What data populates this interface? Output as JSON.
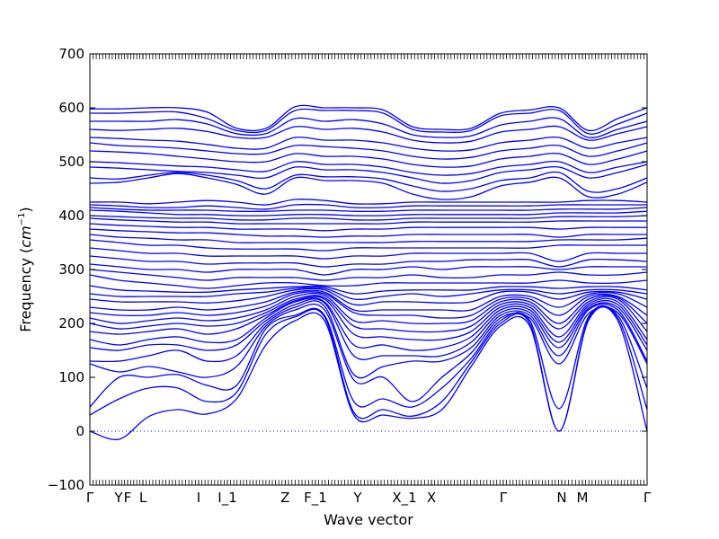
{
  "chart_data": {
    "type": "line",
    "title": "",
    "xlabel": "Wave vector",
    "ylabel": "Frequency (cm⁻¹)",
    "ylabel_text": "Frequency",
    "ylabel_unit_base": "cm",
    "ylabel_unit_exp": "−1",
    "ylim": [
      -100,
      700
    ],
    "xlim": [
      0,
      1
    ],
    "yticks": [
      -100,
      0,
      100,
      200,
      300,
      400,
      500,
      600,
      700
    ],
    "grid": false,
    "series_color": "#0000ff",
    "zero_line_color": "#0000ff",
    "high_symmetry_points": [
      {
        "label": "Γ",
        "x": 0.0
      },
      {
        "label": "Y",
        "x": 0.0516
      },
      {
        "label": "F",
        "x": 0.0677
      },
      {
        "label": "L",
        "x": 0.0952
      },
      {
        "label": "I",
        "x": 0.1952
      },
      {
        "label": "I_1",
        "x": 0.2468
      },
      {
        "label": "Z",
        "x": 0.3505
      },
      {
        "label": "F_1",
        "x": 0.4048
      },
      {
        "label": "Y",
        "x": 0.4806
      },
      {
        "label": "X_1",
        "x": 0.5645
      },
      {
        "label": "X",
        "x": 0.6129
      },
      {
        "label": "Γ",
        "x": 0.7419
      },
      {
        "label": "N",
        "x": 0.8468
      },
      {
        "label": "M",
        "x": 0.8839
      },
      {
        "label": "Γ",
        "x": 1.0
      }
    ],
    "bands": [
      [
        0,
        -15,
        27,
        40,
        32,
        60,
        160,
        205,
        205,
        30,
        30,
        24,
        40,
        120,
        195,
        195,
        0,
        205,
        205,
        0
      ],
      [
        30,
        60,
        80,
        80,
        55,
        72,
        180,
        212,
        212,
        35,
        40,
        28,
        55,
        128,
        200,
        200,
        0,
        208,
        210,
        40
      ],
      [
        45,
        100,
        100,
        105,
        85,
        85,
        190,
        215,
        215,
        55,
        60,
        45,
        80,
        135,
        205,
        205,
        42,
        212,
        215,
        80
      ],
      [
        125,
        110,
        120,
        110,
        100,
        120,
        195,
        225,
        225,
        95,
        100,
        55,
        100,
        145,
        210,
        210,
        125,
        218,
        220,
        125
      ],
      [
        130,
        130,
        140,
        150,
        130,
        140,
        200,
        230,
        232,
        105,
        120,
        130,
        130,
        155,
        215,
        215,
        140,
        225,
        225,
        130
      ],
      [
        155,
        150,
        160,
        160,
        150,
        160,
        205,
        235,
        238,
        140,
        140,
        140,
        140,
        165,
        220,
        220,
        155,
        228,
        230,
        150
      ],
      [
        170,
        160,
        170,
        175,
        165,
        170,
        210,
        240,
        240,
        160,
        160,
        150,
        155,
        175,
        225,
        225,
        165,
        232,
        235,
        160
      ],
      [
        185,
        180,
        185,
        190,
        180,
        190,
        215,
        242,
        245,
        180,
        175,
        170,
        170,
        185,
        230,
        230,
        175,
        236,
        240,
        170
      ],
      [
        200,
        190,
        195,
        200,
        195,
        200,
        220,
        245,
        248,
        195,
        190,
        185,
        185,
        195,
        235,
        235,
        190,
        240,
        245,
        185
      ],
      [
        210,
        200,
        205,
        210,
        205,
        210,
        225,
        250,
        252,
        205,
        205,
        200,
        200,
        205,
        240,
        240,
        200,
        245,
        248,
        200
      ],
      [
        220,
        215,
        215,
        220,
        215,
        220,
        232,
        255,
        255,
        220,
        215,
        215,
        210,
        215,
        245,
        245,
        215,
        250,
        250,
        215
      ],
      [
        230,
        225,
        225,
        230,
        225,
        230,
        240,
        258,
        258,
        225,
        225,
        225,
        225,
        225,
        250,
        250,
        230,
        254,
        255,
        230
      ],
      [
        245,
        240,
        240,
        240,
        238,
        242,
        250,
        262,
        262,
        235,
        240,
        240,
        238,
        240,
        258,
        258,
        245,
        258,
        258,
        245
      ],
      [
        255,
        250,
        250,
        250,
        250,
        255,
        258,
        265,
        265,
        245,
        250,
        255,
        250,
        255,
        262,
        262,
        255,
        262,
        262,
        255
      ],
      [
        270,
        262,
        260,
        258,
        258,
        262,
        265,
        268,
        268,
        255,
        260,
        262,
        262,
        262,
        268,
        268,
        265,
        268,
        268,
        262
      ],
      [
        290,
        280,
        275,
        270,
        265,
        270,
        275,
        275,
        270,
        270,
        275,
        275,
        275,
        275,
        275,
        275,
        280,
        275,
        275,
        280
      ],
      [
        300,
        295,
        290,
        285,
        280,
        285,
        285,
        285,
        280,
        285,
        285,
        290,
        285,
        285,
        290,
        290,
        295,
        290,
        290,
        295
      ],
      [
        310,
        305,
        300,
        300,
        295,
        300,
        300,
        300,
        290,
        300,
        300,
        305,
        300,
        305,
        305,
        305,
        300,
        305,
        305,
        305
      ],
      [
        325,
        320,
        315,
        315,
        310,
        312,
        312,
        312,
        305,
        310,
        310,
        315,
        315,
        318,
        318,
        318,
        305,
        318,
        318,
        315
      ],
      [
        340,
        335,
        330,
        330,
        325,
        325,
        325,
        325,
        320,
        325,
        325,
        330,
        330,
        330,
        330,
        330,
        315,
        330,
        330,
        330
      ],
      [
        355,
        350,
        345,
        345,
        340,
        338,
        338,
        338,
        335,
        340,
        340,
        340,
        340,
        340,
        340,
        340,
        345,
        345,
        345,
        345
      ],
      [
        365,
        360,
        358,
        355,
        355,
        350,
        350,
        350,
        350,
        350,
        350,
        352,
        352,
        352,
        352,
        352,
        355,
        355,
        355,
        358
      ],
      [
        375,
        372,
        370,
        368,
        368,
        365,
        362,
        362,
        360,
        362,
        362,
        365,
        365,
        365,
        365,
        365,
        360,
        365,
        365,
        365
      ],
      [
        385,
        382,
        380,
        378,
        378,
        375,
        375,
        375,
        372,
        375,
        375,
        378,
        378,
        378,
        378,
        378,
        375,
        378,
        378,
        378
      ],
      [
        395,
        392,
        390,
        388,
        388,
        385,
        385,
        385,
        385,
        385,
        385,
        388,
        388,
        388,
        388,
        388,
        390,
        390,
        390,
        390
      ],
      [
        400,
        398,
        396,
        395,
        395,
        392,
        392,
        395,
        395,
        392,
        392,
        395,
        395,
        395,
        395,
        395,
        398,
        398,
        398,
        400
      ],
      [
        410,
        408,
        405,
        402,
        402,
        400,
        400,
        402,
        402,
        400,
        400,
        402,
        402,
        402,
        402,
        402,
        405,
        405,
        405,
        408
      ],
      [
        415,
        412,
        410,
        410,
        410,
        408,
        408,
        410,
        410,
        408,
        408,
        410,
        410,
        410,
        410,
        410,
        412,
        412,
        412,
        415
      ],
      [
        420,
        418,
        415,
        415,
        418,
        415,
        412,
        420,
        420,
        415,
        415,
        418,
        418,
        418,
        418,
        418,
        420,
        420,
        420,
        420
      ],
      [
        425,
        425,
        422,
        425,
        428,
        425,
        420,
        430,
        428,
        422,
        422,
        425,
        425,
        425,
        425,
        425,
        425,
        428,
        428,
        425
      ],
      [
        460,
        462,
        470,
        478,
        470,
        458,
        440,
        470,
        465,
        465,
        460,
        440,
        430,
        435,
        455,
        462,
        470,
        435,
        440,
        462
      ],
      [
        470,
        468,
        475,
        480,
        475,
        465,
        450,
        475,
        472,
        472,
        468,
        455,
        445,
        450,
        465,
        470,
        480,
        445,
        450,
        470
      ],
      [
        490,
        488,
        485,
        482,
        480,
        475,
        470,
        490,
        485,
        485,
        480,
        470,
        460,
        465,
        480,
        485,
        490,
        470,
        480,
        495
      ],
      [
        500,
        498,
        495,
        492,
        490,
        485,
        482,
        500,
        495,
        495,
        490,
        480,
        475,
        478,
        490,
        495,
        500,
        480,
        490,
        500
      ],
      [
        520,
        518,
        515,
        510,
        505,
        500,
        500,
        515,
        510,
        510,
        505,
        495,
        490,
        492,
        505,
        510,
        515,
        495,
        505,
        520
      ],
      [
        535,
        530,
        528,
        525,
        520,
        515,
        515,
        530,
        528,
        525,
        520,
        510,
        505,
        508,
        520,
        525,
        530,
        510,
        520,
        535
      ],
      [
        545,
        543,
        540,
        538,
        532,
        525,
        525,
        545,
        540,
        540,
        535,
        525,
        520,
        522,
        535,
        540,
        545,
        525,
        535,
        545
      ],
      [
        560,
        558,
        560,
        562,
        556,
        545,
        545,
        565,
        560,
        562,
        555,
        540,
        535,
        538,
        555,
        560,
        565,
        540,
        552,
        565
      ],
      [
        575,
        575,
        575,
        578,
        570,
        552,
        552,
        580,
        575,
        578,
        570,
        550,
        545,
        548,
        568,
        575,
        580,
        545,
        560,
        575
      ],
      [
        590,
        590,
        592,
        592,
        580,
        558,
        558,
        595,
        595,
        595,
        590,
        560,
        555,
        558,
        585,
        590,
        595,
        552,
        570,
        590
      ],
      [
        598,
        598,
        600,
        600,
        592,
        562,
        562,
        602,
        600,
        600,
        596,
        565,
        560,
        562,
        590,
        596,
        600,
        558,
        580,
        600
      ]
    ]
  }
}
